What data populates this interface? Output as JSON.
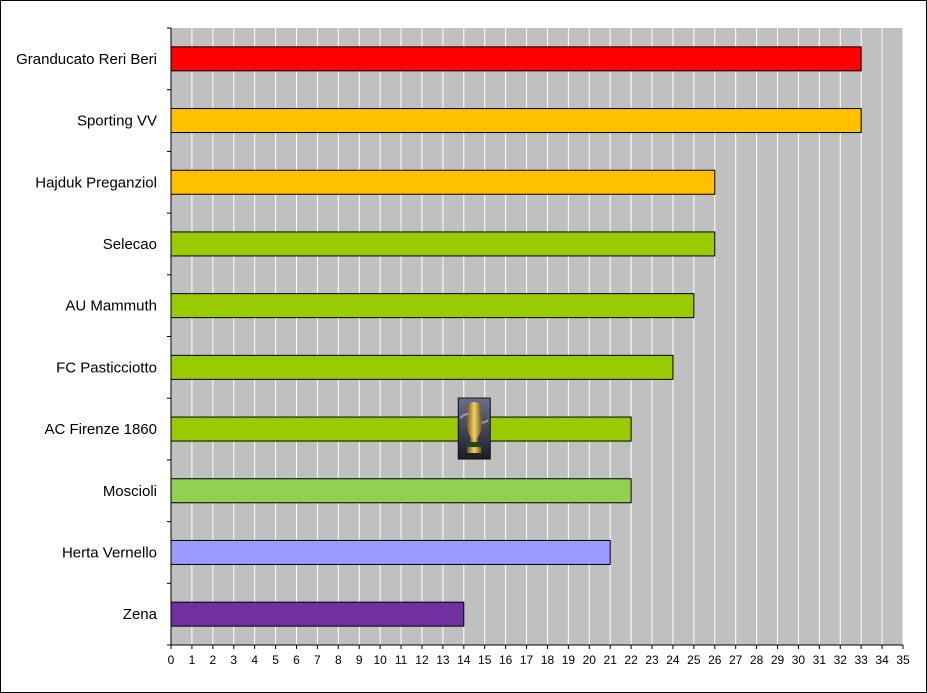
{
  "chart_data": {
    "type": "bar",
    "orientation": "horizontal",
    "categories": [
      "Granducato Reri Beri",
      "Sporting VV",
      "Hajduk Preganziol",
      "Selecao",
      "AU Mammuth",
      "FC Pasticciotto",
      "AC Firenze 1860",
      "Moscioli",
      "Herta Vernello",
      "Zena"
    ],
    "values": [
      33,
      33,
      26,
      26,
      25,
      24,
      22,
      22,
      21,
      14
    ],
    "bar_colors": [
      "#ff0000",
      "#ffc000",
      "#ffc000",
      "#99cc00",
      "#99cc00",
      "#99cc00",
      "#99cc00",
      "#92d050",
      "#9999ff",
      "#7030a0"
    ],
    "xlim": [
      0,
      35
    ],
    "x_ticks": [
      "0",
      "1",
      "2",
      "3",
      "4",
      "5",
      "6",
      "7",
      "8",
      "9",
      "10",
      "11",
      "12",
      "13",
      "14",
      "15",
      "16",
      "17",
      "18",
      "19",
      "20",
      "21",
      "22",
      "23",
      "24",
      "25",
      "26",
      "27",
      "28",
      "29",
      "30",
      "31",
      "32",
      "33",
      "34",
      "35"
    ],
    "plot_background": "#c0c0c0",
    "gridlines": "vertical",
    "grid_color": "#ffffff",
    "title": "",
    "xlabel": "",
    "ylabel": "",
    "annotation_icon": "trophy-icon",
    "annotation_at": {
      "category": "AC Firenze 1860",
      "x": 14.5
    }
  }
}
